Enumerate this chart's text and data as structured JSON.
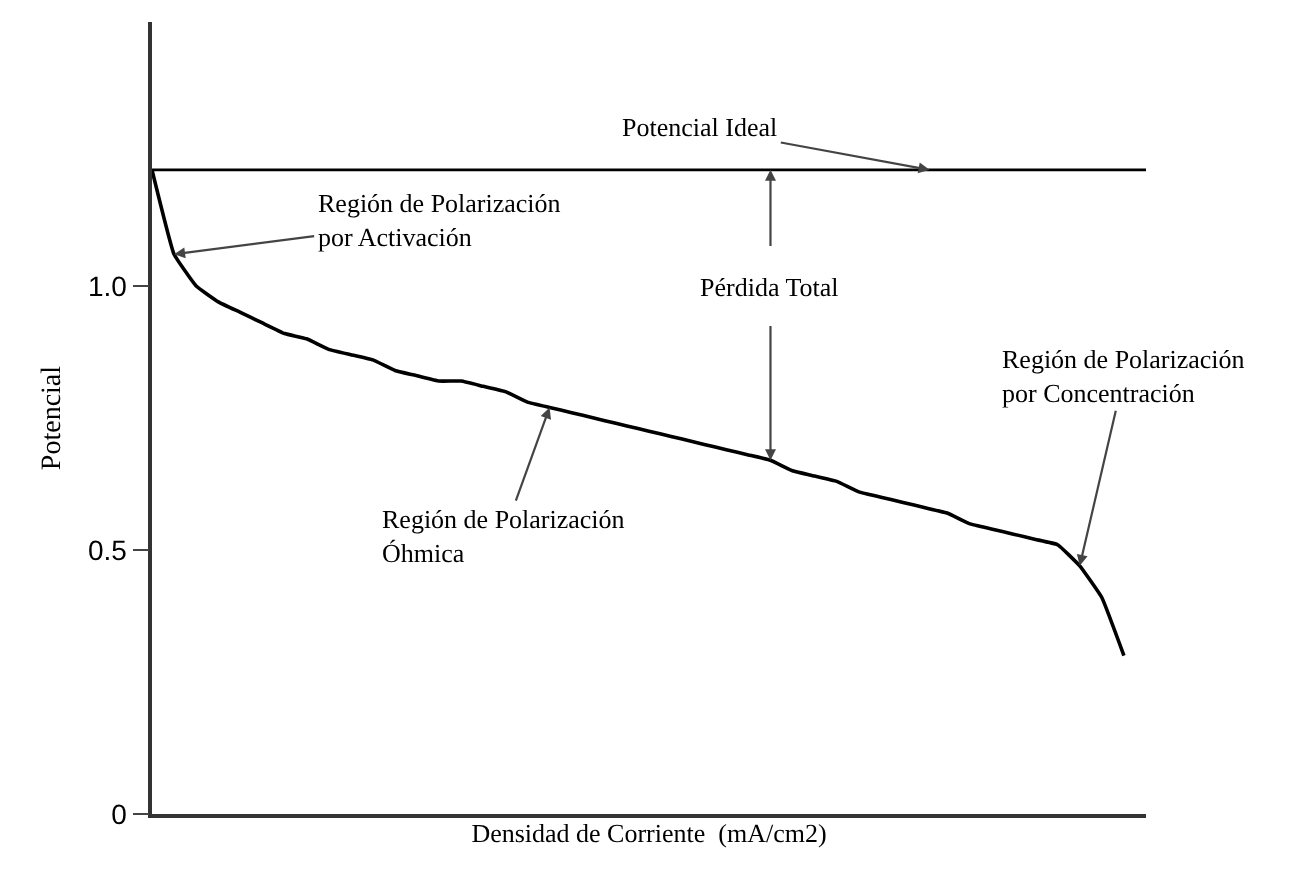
{
  "chart_data": {
    "type": "line",
    "xlabel": "Densidad de Corriente  (mA/cm2)",
    "ylabel": "Potencial",
    "categories": [
      null,
      null,
      null,
      null,
      null,
      null,
      null,
      null,
      null,
      null,
      null,
      null,
      null,
      null,
      null,
      null,
      null,
      null,
      null,
      null,
      null,
      null,
      null,
      null,
      null,
      null,
      null,
      null,
      null,
      null,
      null,
      null,
      null,
      null,
      null,
      null,
      null,
      null,
      null,
      null,
      null,
      null,
      null,
      null,
      null,
      null
    ],
    "series": [
      {
        "color": "#000000",
        "values": [
          1.22,
          1.06,
          1.0,
          0.97,
          0.95,
          0.93,
          0.91,
          0.9,
          0.88,
          0.87,
          0.86,
          0.84,
          0.83,
          0.82,
          0.82,
          0.81,
          0.8,
          0.78,
          0.77,
          0.76,
          0.75,
          0.74,
          0.73,
          0.72,
          0.71,
          0.7,
          0.69,
          0.68,
          0.67,
          0.65,
          0.64,
          0.63,
          0.61,
          0.6,
          0.59,
          0.58,
          0.57,
          0.55,
          0.54,
          0.53,
          0.52,
          0.51,
          0.47,
          0.41,
          0.3,
          null
        ]
      }
    ],
    "ylim": [
      0,
      1.5
    ],
    "yticks": [
      0,
      0.5,
      {
        "value": 1,
        "label": "1.0"
      }
    ],
    "ref_lines": [
      {
        "axis": "y",
        "value": 1.22,
        "label": "Potencial Ideal",
        "color": "#000000"
      }
    ],
    "annotations": [
      "Región de Polarización\npor Activación",
      "Pérdida Total",
      "Región de Polarización\nÓhmica",
      "Región de Polarización\npor Concentración"
    ],
    "tick_labels": "y",
    "grid": false,
    "marker": "none",
    "line_style": "solid"
  }
}
